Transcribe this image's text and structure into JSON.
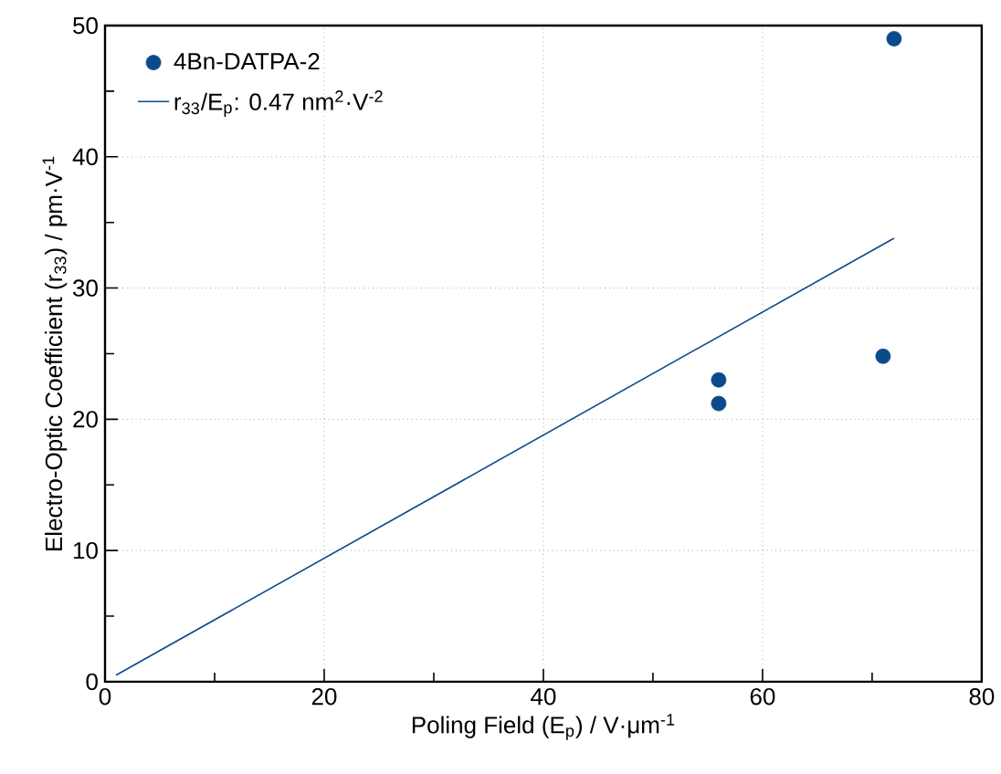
{
  "chart_data": {
    "type": "scatter",
    "xlabel": "Poling Field (E$_{p}$) / V·μm$^{-1}$",
    "ylabel": "Electro-Optic Coefficient (r$_{33}$) / pm·V$^{-1}$",
    "xlim": [
      0,
      80
    ],
    "ylim": [
      0,
      50
    ],
    "xticks": [
      0,
      20,
      40,
      60,
      80
    ],
    "yticks": [
      0,
      10,
      20,
      30,
      40,
      50
    ],
    "grid": true,
    "legend": "top left",
    "series": [
      {
        "name": "4Bn-DATPA-2",
        "color": "#0b4a8b",
        "marker": "circle",
        "x": [
          56,
          56,
          71,
          72
        ],
        "values": [
          23.0,
          21.2,
          24.8,
          49.0
        ]
      },
      {
        "name": "r$_{33}$/E$_{p}$: 0.47 nm$^{2}$·V$^{-2}$",
        "type": "line",
        "color": "#0b4a8b",
        "marker": "none",
        "line_style": "solid",
        "x": [
          1,
          72
        ],
        "values": [
          0.5,
          33.8
        ]
      }
    ]
  }
}
